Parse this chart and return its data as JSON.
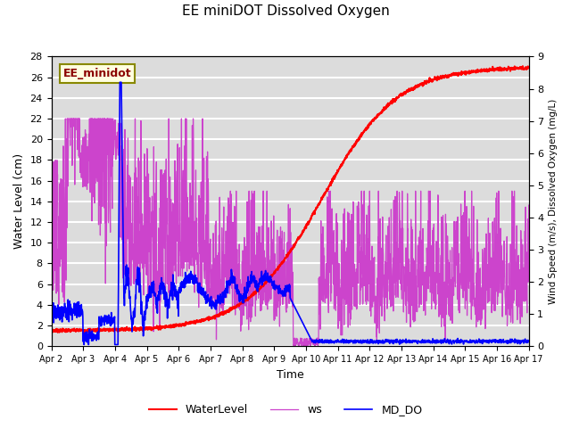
{
  "title": "EE miniDOT Dissolved Oxygen",
  "xlabel": "Time",
  "ylabel_left": "Water Level (cm)",
  "ylabel_right": "Wind Speed (m/s), Dissolved Oxygen (mg/L)",
  "annotation": "EE_minidot",
  "legend": [
    "WaterLevel",
    "ws",
    "MD_DO"
  ],
  "legend_colors": [
    "red",
    "#cc44cc",
    "blue"
  ],
  "ylim_left": [
    0,
    28
  ],
  "ylim_right": [
    0.0,
    9.0
  ],
  "yticks_left": [
    0,
    2,
    4,
    6,
    8,
    10,
    12,
    14,
    16,
    18,
    20,
    22,
    24,
    26,
    28
  ],
  "yticks_right": [
    0.0,
    1.0,
    2.0,
    3.0,
    4.0,
    5.0,
    6.0,
    7.0,
    8.0,
    9.0
  ],
  "xtick_labels": [
    "Apr 2",
    "Apr 3",
    "Apr 4",
    "Apr 5",
    "Apr 6",
    "Apr 7",
    "Apr 8",
    "Apr 9",
    "Apr 10",
    "Apr 11",
    "Apr 12",
    "Apr 13",
    "Apr 14",
    "Apr 15",
    "Apr 16",
    "Apr 17"
  ],
  "background_color": "#dcdcdc",
  "grid_color": "white",
  "n_points": 2000
}
